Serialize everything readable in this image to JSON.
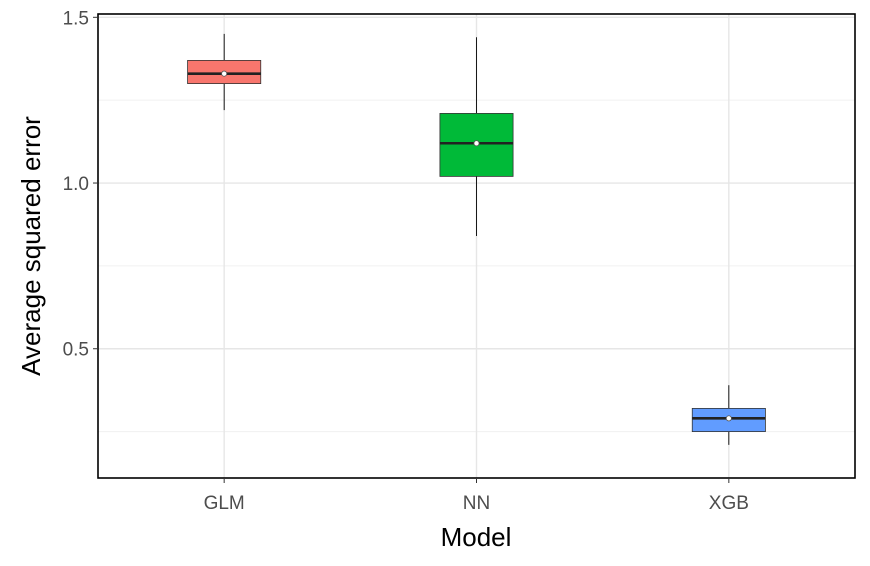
{
  "chart_data": {
    "type": "boxplot",
    "xlabel": "Model",
    "ylabel": "Average squared error",
    "categories": [
      "GLM",
      "NN",
      "XGB"
    ],
    "boxes": [
      {
        "category": "GLM",
        "min": 1.22,
        "q1": 1.3,
        "median": 1.33,
        "q3": 1.37,
        "max": 1.45,
        "mean": 1.33,
        "color": "#F8766D"
      },
      {
        "category": "NN",
        "min": 0.84,
        "q1": 1.02,
        "median": 1.12,
        "q3": 1.21,
        "max": 1.44,
        "mean": 1.12,
        "color": "#00BA38"
      },
      {
        "category": "XGB",
        "min": 0.21,
        "q1": 0.25,
        "median": 0.29,
        "q3": 0.32,
        "max": 0.39,
        "mean": 0.29,
        "color": "#619CFF"
      }
    ],
    "ylim": [
      0.11,
      1.51
    ],
    "y_ticks": [
      0.5,
      1.0,
      1.5
    ],
    "y_tick_labels": [
      "0.5",
      "1.0",
      "1.5"
    ],
    "y_minor_ticks": [
      0.25,
      0.75,
      1.25
    ],
    "grid": true,
    "legend": "none"
  }
}
